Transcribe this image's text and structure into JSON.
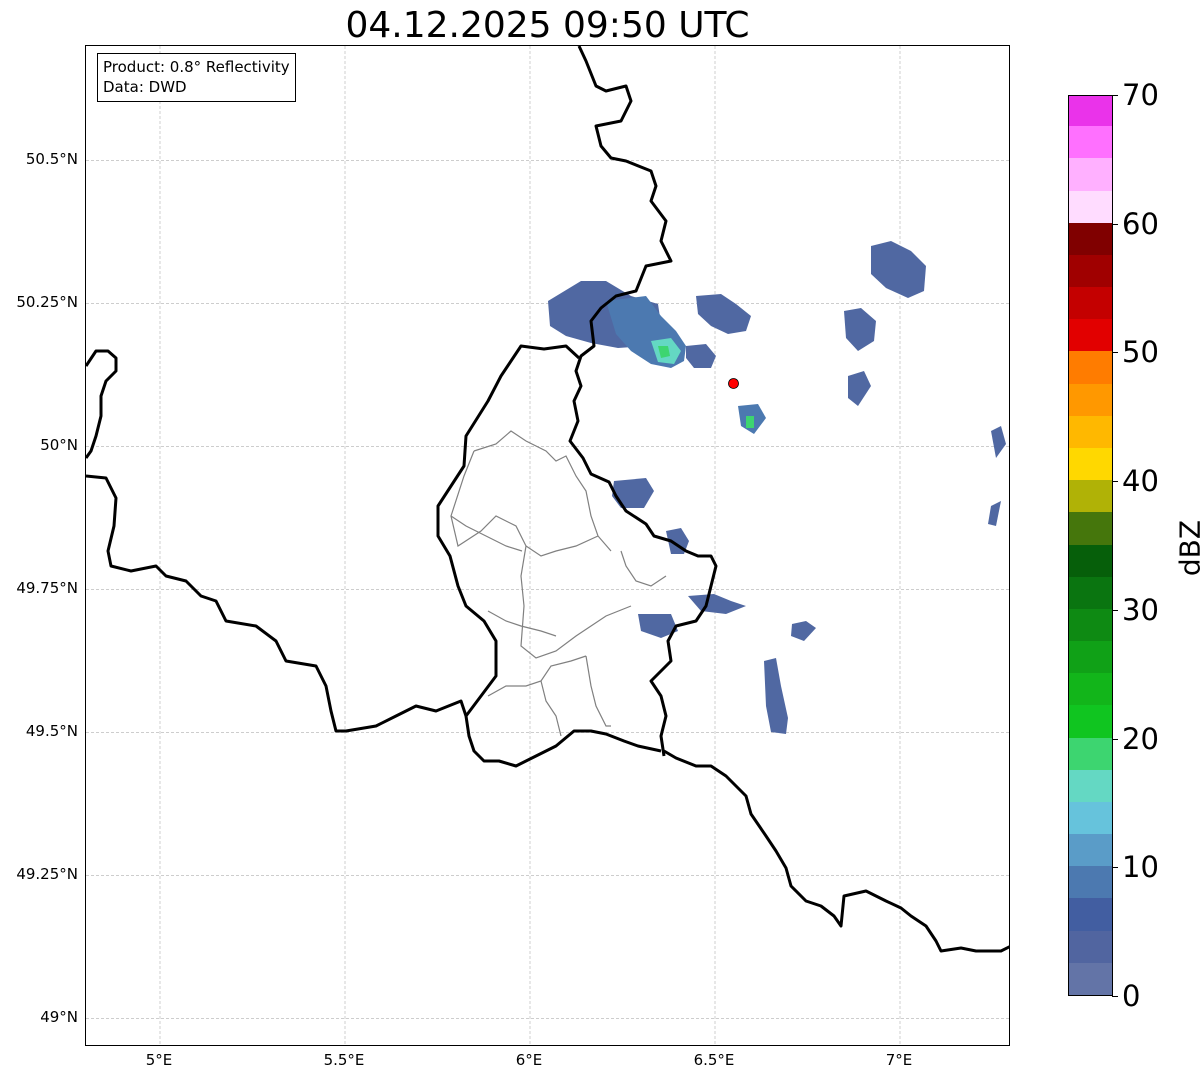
{
  "title": "04.12.2025 09:50 UTC",
  "info": {
    "product": "Product: 0.8° Reflectivity",
    "data": "Data: DWD"
  },
  "map": {
    "lon_range": [
      4.8,
      7.3
    ],
    "lat_range": [
      48.95,
      50.7
    ],
    "lat_ticks": [
      {
        "value": 50.5,
        "label": "50.5°N"
      },
      {
        "value": 50.25,
        "label": "50.25°N"
      },
      {
        "value": 50.0,
        "label": "50°N"
      },
      {
        "value": 49.75,
        "label": "49.75°N"
      },
      {
        "value": 49.5,
        "label": "49.5°N"
      },
      {
        "value": 49.25,
        "label": "49.25°N"
      },
      {
        "value": 49.0,
        "label": "49°N"
      }
    ],
    "lon_ticks": [
      {
        "value": 5.0,
        "label": "5°E"
      },
      {
        "value": 5.5,
        "label": "5.5°E"
      },
      {
        "value": 6.0,
        "label": "6°E"
      },
      {
        "value": 6.5,
        "label": "6.5°E"
      },
      {
        "value": 7.0,
        "label": "7°E"
      }
    ],
    "grid": true,
    "border_color": "#000000",
    "district_color": "#808080",
    "radar_site": {
      "lon": 6.55,
      "lat": 50.11,
      "color": "#ff0000"
    }
  },
  "colorbar": {
    "label": "dBZ",
    "min": 0,
    "max": 70,
    "step": 2.5,
    "ticks": [
      {
        "value": 70,
        "label": "70"
      },
      {
        "value": 60,
        "label": "60"
      },
      {
        "value": 50,
        "label": "50"
      },
      {
        "value": 40,
        "label": "40"
      },
      {
        "value": 30,
        "label": "30"
      },
      {
        "value": 20,
        "label": "20"
      },
      {
        "value": 10,
        "label": "10"
      },
      {
        "value": 0,
        "label": "0"
      }
    ],
    "colors": [
      "#6374a7",
      "#5165a0",
      "#425ea1",
      "#4c79b0",
      "#5a9cc8",
      "#66c3dc",
      "#64d8c3",
      "#3dd570",
      "#10c520",
      "#12b51a",
      "#10a117",
      "#0e8a13",
      "#0a7510",
      "#065f0a",
      "#45760c",
      "#b0b206",
      "#ffd800",
      "#ffb800",
      "#ff9800",
      "#ff7c00",
      "#e20000",
      "#c40000",
      "#a00000",
      "#800000",
      "#ffdcff",
      "#ffb0ff",
      "#ff70ff",
      "#ea33ea"
    ]
  }
}
